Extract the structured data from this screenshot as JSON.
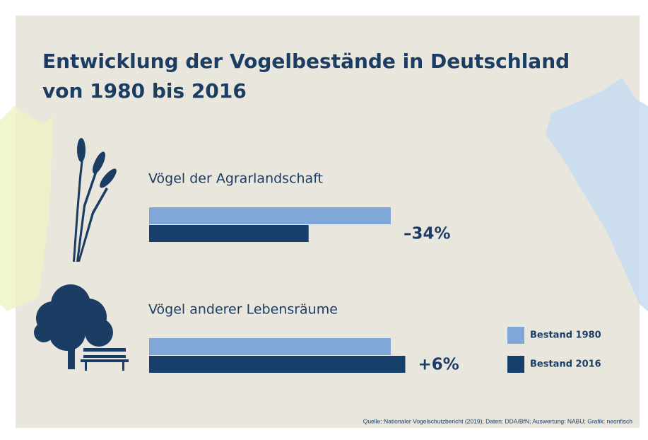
{
  "chart_data": {
    "type": "bar",
    "orientation": "horizontal",
    "title": [
      "Entwicklung der Vogelbestände in Deutschland",
      "von 1980 bis 2016"
    ],
    "categories": [
      "Vögel der Agrarlandschaft",
      "Vögel anderer Lebensräume"
    ],
    "series": [
      {
        "name": "Bestand 1980",
        "color": "#7fa7d8",
        "values": [
          100,
          100
        ]
      },
      {
        "name": "Bestand 2016",
        "color": "#173f6b",
        "values": [
          66,
          106
        ]
      }
    ],
    "changes": {
      "values": [
        -34,
        6
      ],
      "value_labels": [
        "–34%",
        "+6%"
      ]
    },
    "legend": "right",
    "source": "Quelle: Nationaler Vogelschutzbericht (2019); Daten: DDA/BfN; Auswertung: NABU; Grafik: neonfisch"
  }
}
